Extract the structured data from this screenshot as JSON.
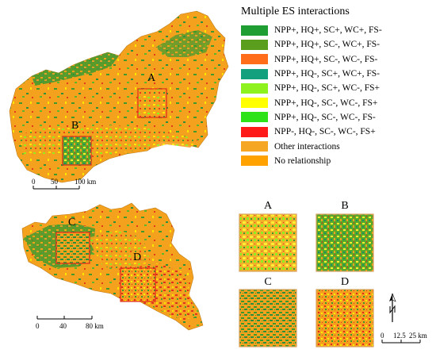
{
  "legend": {
    "title": "Multiple ES interactions",
    "items": [
      {
        "label": "NPP+, HQ+, SC+, WC+, FS-",
        "color": "#1f9e33"
      },
      {
        "label": "NPP+, HQ+, SC-, WC+, FS-",
        "color": "#5a9e1e"
      },
      {
        "label": "NPP+, HQ+, SC-, WC-, FS-",
        "color": "#ff6d1a"
      },
      {
        "label": "NPP+, HQ-, SC+, WC+, FS-",
        "color": "#13a07e"
      },
      {
        "label": "NPP+, HQ-, SC+, WC-, FS+",
        "color": "#8ef21f"
      },
      {
        "label": "NPP+, HQ-, SC-, WC-, FS+",
        "color": "#ffff00"
      },
      {
        "label": "NPP+, HQ-, SC-, WC-, FS-",
        "color": "#2ee21a"
      },
      {
        "label": "NPP-, HQ-, SC-, WC-, FS+",
        "color": "#ff1a1a"
      },
      {
        "label": "Other interactions",
        "color": "#f5a623"
      },
      {
        "label": "No relationship",
        "color": "#ffa200"
      }
    ]
  },
  "map_top": {
    "box_labels": [
      "A",
      "B"
    ],
    "scale": {
      "ticks": [
        "0",
        "50",
        "100 km"
      ]
    }
  },
  "map_bottom": {
    "box_labels": [
      "C",
      "D"
    ],
    "scale": {
      "ticks": [
        "0",
        "40",
        "80 km"
      ]
    }
  },
  "zoom_panels": {
    "labels": [
      "A",
      "B",
      "C",
      "D"
    ],
    "scale": {
      "ticks": [
        "0",
        "12.5",
        "25 km"
      ]
    }
  },
  "colors": {
    "base_orange": "#f4a21e",
    "box_red": "#e0261d",
    "frame": "#d9a15a"
  },
  "north_arrow": "north-arrow-icon"
}
